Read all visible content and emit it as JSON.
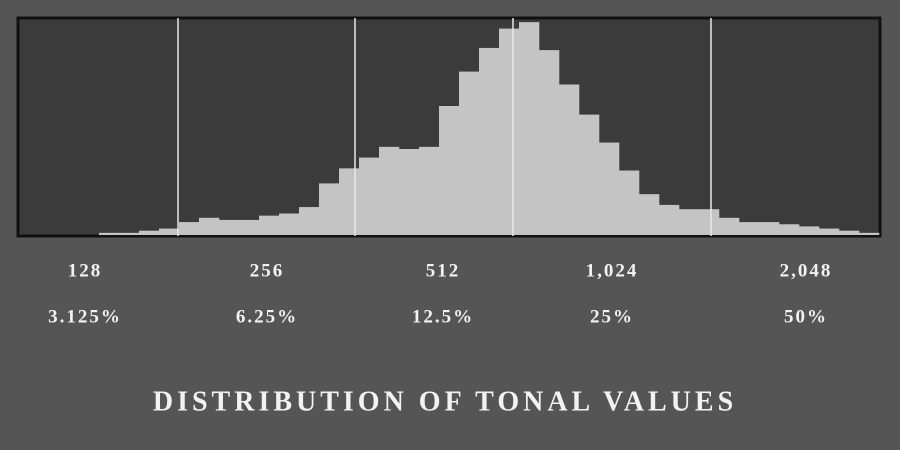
{
  "chart_data": {
    "type": "histogram",
    "title": "DISTRIBUTION OF TONAL VALUES",
    "zones": [
      "128",
      "256",
      "512",
      "1,024",
      "2,048"
    ],
    "zone_percents": [
      "3.125%",
      "6.25%",
      "12.5%",
      "25%",
      "50%"
    ],
    "values": [
      0,
      0,
      0,
      0,
      1,
      1,
      2,
      3,
      6,
      8,
      7,
      7,
      9,
      10,
      13,
      24,
      31,
      36,
      41,
      40,
      41,
      60,
      76,
      87,
      96,
      99,
      86,
      70,
      56,
      43,
      30,
      19,
      14,
      12,
      12,
      8,
      6,
      6,
      5,
      4,
      3,
      2,
      1
    ],
    "ylim": [
      0,
      100
    ],
    "color": "#c4c4c4"
  }
}
